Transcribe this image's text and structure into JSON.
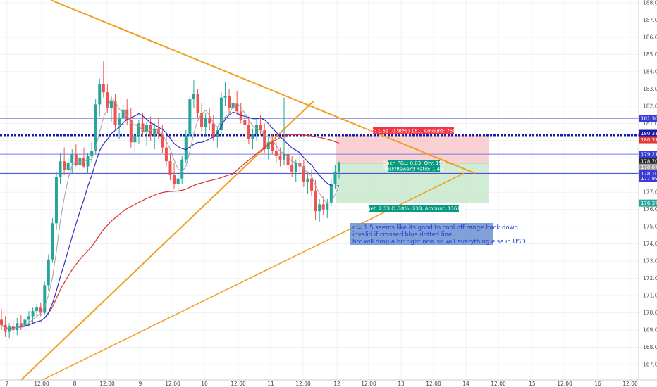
{
  "chart_data": {
    "type": "candlestick",
    "title": "",
    "y_axis": {
      "range": [
        166.6,
        188.1
      ],
      "ticks": [
        "167.00",
        "168.00",
        "169.00",
        "170.00",
        "171.00",
        "172.00",
        "173.00",
        "174.00",
        "175.00",
        "176.00",
        "177.00",
        "178.00",
        "179.00",
        "180.00",
        "181.00",
        "182.00",
        "183.00",
        "184.00",
        "185.00",
        "186.00",
        "187.00",
        "188.00"
      ],
      "position": "right"
    },
    "x_axis": {
      "ticks": [
        "7",
        "12:00",
        "8",
        "12:00",
        "9",
        "12:00",
        "10",
        "12:00",
        "11",
        "12:00",
        "12",
        "12:00",
        "13",
        "12:00",
        "14",
        "12:00",
        "15",
        "12:00",
        "16",
        "12:00"
      ]
    },
    "grid": true,
    "price_badges": [
      {
        "value": "181.30",
        "color": "#3b3bd6"
      },
      {
        "value": "180.31",
        "color": "#1a1aa8"
      },
      {
        "value": "180.31",
        "color": "#e53935"
      },
      {
        "value": "179.21",
        "color": "#3b3bd6"
      },
      {
        "value": "178.70",
        "color": "#2b2b2b"
      },
      {
        "value": "178.67",
        "color": "#9e9e9e"
      },
      {
        "value": "178.10",
        "color": "#3b3bd6"
      },
      {
        "value": "177.99",
        "color": "#3b3bd6"
      },
      {
        "value": "176.37",
        "color": "#26a69a"
      }
    ],
    "horizontal_levels": [
      {
        "price": 181.3,
        "style": "solid",
        "color": "#3b3bd6"
      },
      {
        "price": 180.31,
        "style": "dotted",
        "color": "#1a1aa8"
      },
      {
        "price": 179.21,
        "style": "solid",
        "color": "#7a7ae0"
      },
      {
        "price": 178.1,
        "style": "solid",
        "color": "#3b3bd6"
      }
    ],
    "position_tool": {
      "stop_label": "Stop: 1.61 (0.90%) 161, Amount: 750.45",
      "target_label": "Target: 2.33 (1.30%) 233, Amount: 1361.15",
      "pnl_label": "Open P&L: 0.03, Qty: 155",
      "rr_label": "Risk/Reward Ratio: 1.45",
      "entry": 178.7,
      "stop": 180.31,
      "target": 176.37
    },
    "annotation": {
      "lines": [
        "r = 1.5 seems like its good to cool off range back down",
        "invalid if crossed blue dotted line",
        "btc will drop a bit right now so will everything else in USD"
      ]
    },
    "series": [
      {
        "kind": "candles",
        "ohlc": [
          [
            169.6,
            170.2,
            169.0,
            169.3
          ],
          [
            169.3,
            169.8,
            168.6,
            168.9
          ],
          [
            168.9,
            169.4,
            168.5,
            169.2
          ],
          [
            169.2,
            169.6,
            168.8,
            169.0
          ],
          [
            169.0,
            169.7,
            168.7,
            169.4
          ],
          [
            169.4,
            169.9,
            169.0,
            169.2
          ],
          [
            169.2,
            169.8,
            168.9,
            169.6
          ],
          [
            169.6,
            170.1,
            169.2,
            169.8
          ],
          [
            169.8,
            170.3,
            169.4,
            170.1
          ],
          [
            170.1,
            170.5,
            169.8,
            170.3
          ],
          [
            170.3,
            170.6,
            169.8,
            170.0
          ],
          [
            170.0,
            171.8,
            169.9,
            171.6
          ],
          [
            171.6,
            173.4,
            171.3,
            173.1
          ],
          [
            173.1,
            175.5,
            172.9,
            175.2
          ],
          [
            175.2,
            178.2,
            174.8,
            177.9
          ],
          [
            177.9,
            179.3,
            177.5,
            178.8
          ],
          [
            178.8,
            179.6,
            178.0,
            178.3
          ],
          [
            178.3,
            179.0,
            177.9,
            178.7
          ],
          [
            178.7,
            179.5,
            178.1,
            179.2
          ],
          [
            179.2,
            179.8,
            178.5,
            178.6
          ],
          [
            178.6,
            179.3,
            178.2,
            179.0
          ],
          [
            179.0,
            179.6,
            178.4,
            178.5
          ],
          [
            178.5,
            179.3,
            178.1,
            179.1
          ],
          [
            179.1,
            179.9,
            178.7,
            179.4
          ],
          [
            179.4,
            182.4,
            179.2,
            182.1
          ],
          [
            182.1,
            183.6,
            181.4,
            183.3
          ],
          [
            183.3,
            184.6,
            182.5,
            182.8
          ],
          [
            182.8,
            183.3,
            181.6,
            181.9
          ],
          [
            181.9,
            182.6,
            181.1,
            182.3
          ],
          [
            182.3,
            182.7,
            180.6,
            180.9
          ],
          [
            180.9,
            181.6,
            180.1,
            181.3
          ],
          [
            181.3,
            182.1,
            180.6,
            181.8
          ],
          [
            181.8,
            182.4,
            180.9,
            181.2
          ],
          [
            181.2,
            181.9,
            179.6,
            179.9
          ],
          [
            179.9,
            180.6,
            179.2,
            180.3
          ],
          [
            180.3,
            181.2,
            179.8,
            181.0
          ],
          [
            181.0,
            181.6,
            180.2,
            180.5
          ],
          [
            180.5,
            181.1,
            179.7,
            180.9
          ],
          [
            180.9,
            181.4,
            180.0,
            180.3
          ],
          [
            180.3,
            181.0,
            179.5,
            180.7
          ],
          [
            180.7,
            181.3,
            180.1,
            180.4
          ],
          [
            180.4,
            180.9,
            179.3,
            179.6
          ],
          [
            179.6,
            180.2,
            178.5,
            178.8
          ],
          [
            178.8,
            179.3,
            177.7,
            178.0
          ],
          [
            178.0,
            178.7,
            177.2,
            177.5
          ],
          [
            177.5,
            178.2,
            176.9,
            177.8
          ],
          [
            177.8,
            179.1,
            177.5,
            178.9
          ],
          [
            178.9,
            180.6,
            178.7,
            180.3
          ],
          [
            180.3,
            182.6,
            180.1,
            182.4
          ],
          [
            182.4,
            183.5,
            181.9,
            182.7
          ],
          [
            182.7,
            183.0,
            181.3,
            181.6
          ],
          [
            181.6,
            182.2,
            180.5,
            180.8
          ],
          [
            180.8,
            181.6,
            180.3,
            181.3
          ],
          [
            181.3,
            181.9,
            180.6,
            181.0
          ],
          [
            181.0,
            181.5,
            180.0,
            180.2
          ],
          [
            180.2,
            180.8,
            179.6,
            180.6
          ],
          [
            180.6,
            182.8,
            180.4,
            182.5
          ],
          [
            182.5,
            183.4,
            182.0,
            182.6
          ],
          [
            182.6,
            183.0,
            181.6,
            181.9
          ],
          [
            181.9,
            182.5,
            181.3,
            182.2
          ],
          [
            182.2,
            182.9,
            181.5,
            181.7
          ],
          [
            181.7,
            182.2,
            181.0,
            181.2
          ],
          [
            181.2,
            181.8,
            180.6,
            180.9
          ],
          [
            180.9,
            181.4,
            179.8,
            180.1
          ],
          [
            180.1,
            180.7,
            179.5,
            180.4
          ],
          [
            180.4,
            181.2,
            180.0,
            180.9
          ],
          [
            180.9,
            181.5,
            180.3,
            180.6
          ],
          [
            180.6,
            181.0,
            179.3,
            179.5
          ],
          [
            179.5,
            180.2,
            178.9,
            179.9
          ],
          [
            179.9,
            180.4,
            179.2,
            179.4
          ],
          [
            179.4,
            179.9,
            178.7,
            179.1
          ],
          [
            179.1,
            179.6,
            178.5,
            178.9
          ],
          [
            178.9,
            182.5,
            178.6,
            179.2
          ],
          [
            179.2,
            179.8,
            178.3,
            178.6
          ],
          [
            178.6,
            179.1,
            177.9,
            178.2
          ],
          [
            178.2,
            178.9,
            177.6,
            178.7
          ],
          [
            178.7,
            179.3,
            178.1,
            178.5
          ],
          [
            178.5,
            178.9,
            177.3,
            177.6
          ],
          [
            177.6,
            178.2,
            176.9,
            177.8
          ],
          [
            177.8,
            178.3,
            176.8,
            177.1
          ],
          [
            177.1,
            177.7,
            175.4,
            175.9
          ],
          [
            175.9,
            176.6,
            175.3,
            176.3
          ],
          [
            176.3,
            176.8,
            175.7,
            176.0
          ],
          [
            176.0,
            176.6,
            175.5,
            176.4
          ],
          [
            176.4,
            177.8,
            176.2,
            177.5
          ],
          [
            177.5,
            178.6,
            177.2,
            178.2
          ],
          [
            178.2,
            178.8,
            177.8,
            178.7
          ]
        ]
      },
      {
        "kind": "line",
        "name": "",
        "color": "#3030c0"
      },
      {
        "kind": "line",
        "name": "",
        "color": "#e03030"
      },
      {
        "kind": "line",
        "name": "",
        "color": "#a0a0a0"
      }
    ],
    "trendlines_color": "#f0a020"
  }
}
